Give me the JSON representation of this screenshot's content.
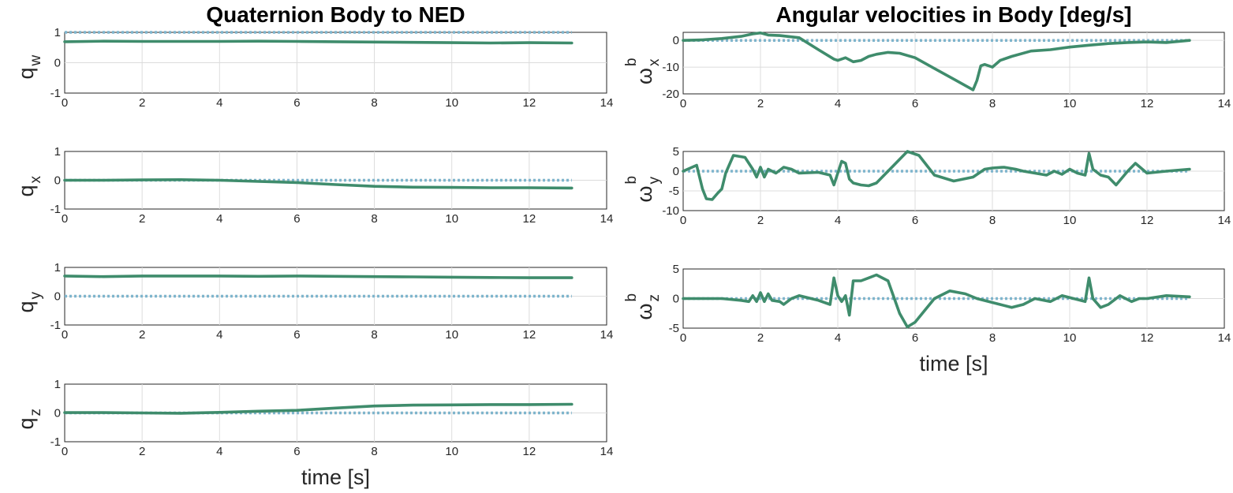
{
  "colors": {
    "measured": "#3f8c6c",
    "reference": "#7fb5cd"
  },
  "chart_data": [
    {
      "type": "line",
      "panel": "qw",
      "title": "Quaternion Body to NED",
      "ylabel": {
        "main": "q",
        "sub": "w",
        "sup": ""
      },
      "xlabel": "",
      "xlim": [
        0,
        14
      ],
      "ylim": [
        -1,
        1
      ],
      "xticks": [
        0,
        2,
        4,
        6,
        8,
        10,
        12,
        14
      ],
      "yticks": [
        -1,
        0,
        1
      ],
      "grid": true,
      "series": [
        {
          "role": "reference",
          "x": [
            0,
            13.1
          ],
          "y": [
            1,
            1
          ]
        },
        {
          "role": "measured",
          "x": [
            0,
            1,
            2,
            3,
            4,
            5,
            6,
            7,
            8,
            9,
            10,
            11,
            12,
            13.1
          ],
          "y": [
            0.69,
            0.71,
            0.7,
            0.7,
            0.7,
            0.71,
            0.7,
            0.69,
            0.68,
            0.67,
            0.66,
            0.65,
            0.66,
            0.65
          ]
        }
      ]
    },
    {
      "type": "line",
      "panel": "qx",
      "ylabel": {
        "main": "q",
        "sub": "x",
        "sup": ""
      },
      "xlabel": "",
      "xlim": [
        0,
        14
      ],
      "ylim": [
        -1,
        1
      ],
      "xticks": [
        0,
        2,
        4,
        6,
        8,
        10,
        12,
        14
      ],
      "yticks": [
        -1,
        0,
        1
      ],
      "grid": true,
      "series": [
        {
          "role": "reference",
          "x": [
            0,
            13.1
          ],
          "y": [
            0,
            0
          ]
        },
        {
          "role": "measured",
          "x": [
            0,
            1,
            2,
            3,
            4,
            5,
            6,
            7,
            8,
            9,
            10,
            11,
            12,
            13.1
          ],
          "y": [
            0.0,
            0.0,
            0.01,
            0.02,
            0.0,
            -0.04,
            -0.08,
            -0.15,
            -0.21,
            -0.24,
            -0.25,
            -0.26,
            -0.26,
            -0.27
          ]
        }
      ]
    },
    {
      "type": "line",
      "panel": "qy",
      "ylabel": {
        "main": "q",
        "sub": "y",
        "sup": ""
      },
      "xlabel": "",
      "xlim": [
        0,
        14
      ],
      "ylim": [
        -1,
        1
      ],
      "xticks": [
        0,
        2,
        4,
        6,
        8,
        10,
        12,
        14
      ],
      "yticks": [
        -1,
        0,
        1
      ],
      "grid": true,
      "series": [
        {
          "role": "reference",
          "x": [
            0,
            13.1
          ],
          "y": [
            0,
            0
          ]
        },
        {
          "role": "measured",
          "x": [
            0,
            1,
            2,
            3,
            4,
            5,
            6,
            7,
            8,
            9,
            10,
            11,
            12,
            13.1
          ],
          "y": [
            0.7,
            0.68,
            0.7,
            0.7,
            0.7,
            0.69,
            0.7,
            0.69,
            0.68,
            0.67,
            0.66,
            0.65,
            0.64,
            0.64
          ]
        }
      ]
    },
    {
      "type": "line",
      "panel": "qz",
      "ylabel": {
        "main": "q",
        "sub": "z",
        "sup": ""
      },
      "xlabel": "time [s]",
      "xlim": [
        0,
        14
      ],
      "ylim": [
        -1,
        1
      ],
      "xticks": [
        0,
        2,
        4,
        6,
        8,
        10,
        12,
        14
      ],
      "yticks": [
        -1,
        0,
        1
      ],
      "grid": true,
      "series": [
        {
          "role": "reference",
          "x": [
            0,
            13.1
          ],
          "y": [
            0,
            0
          ]
        },
        {
          "role": "measured",
          "x": [
            0,
            1,
            2,
            3,
            4,
            5,
            6,
            7,
            8,
            9,
            10,
            11,
            12,
            13.1
          ],
          "y": [
            0.01,
            0.01,
            0.0,
            -0.01,
            0.02,
            0.06,
            0.09,
            0.17,
            0.24,
            0.27,
            0.28,
            0.29,
            0.29,
            0.3
          ]
        }
      ]
    },
    {
      "type": "line",
      "panel": "wx",
      "title": "Angular velocities in Body [deg/s]",
      "ylabel": {
        "main": "ω",
        "sub": "x",
        "sup": "b"
      },
      "xlabel": "",
      "xlim": [
        0,
        14
      ],
      "ylim": [
        -20,
        3
      ],
      "xticks": [
        0,
        2,
        4,
        6,
        8,
        10,
        12,
        14
      ],
      "yticks": [
        -20,
        -10,
        0
      ],
      "grid": true,
      "series": [
        {
          "role": "reference",
          "x": [
            0,
            13.1
          ],
          "y": [
            0,
            0
          ]
        },
        {
          "role": "measured",
          "x": [
            0,
            0.5,
            1.0,
            1.5,
            1.8,
            2.0,
            2.2,
            2.5,
            3.0,
            3.5,
            3.9,
            4.0,
            4.2,
            4.4,
            4.6,
            4.8,
            5.0,
            5.3,
            5.6,
            6.0,
            6.5,
            7.0,
            7.5,
            7.6,
            7.7,
            7.8,
            8.0,
            8.2,
            8.5,
            9.0,
            9.5,
            10.0,
            10.5,
            11.0,
            11.5,
            12.0,
            12.5,
            13.1
          ],
          "y": [
            0,
            0.2,
            0.7,
            1.5,
            2.4,
            2.8,
            2.0,
            1.8,
            1.0,
            -3.5,
            -7.0,
            -7.5,
            -6.5,
            -8.0,
            -7.5,
            -6.0,
            -5.2,
            -4.5,
            -4.8,
            -6.5,
            -10.5,
            -14.5,
            -18.5,
            -15.0,
            -9.5,
            -9.0,
            -10.0,
            -7.5,
            -6.0,
            -4.0,
            -3.5,
            -2.5,
            -1.8,
            -1.2,
            -0.8,
            -0.6,
            -0.8,
            0
          ]
        }
      ]
    },
    {
      "type": "line",
      "panel": "wy",
      "ylabel": {
        "main": "ω",
        "sub": "y",
        "sup": "b"
      },
      "xlabel": "",
      "xlim": [
        0,
        14
      ],
      "ylim": [
        -10,
        5
      ],
      "xticks": [
        0,
        2,
        4,
        6,
        8,
        10,
        12,
        14
      ],
      "yticks": [
        -10,
        -5,
        0,
        5
      ],
      "grid": true,
      "series": [
        {
          "role": "reference",
          "x": [
            0,
            13.1
          ],
          "y": [
            0,
            0
          ]
        },
        {
          "role": "measured",
          "x": [
            0,
            0.35,
            0.5,
            0.6,
            0.75,
            0.9,
            1.0,
            1.1,
            1.3,
            1.6,
            1.8,
            1.9,
            2.0,
            2.1,
            2.2,
            2.4,
            2.6,
            2.8,
            3.0,
            3.5,
            3.8,
            3.9,
            4.1,
            4.2,
            4.3,
            4.4,
            4.6,
            4.8,
            5.0,
            5.5,
            5.8,
            6.1,
            6.5,
            7.0,
            7.5,
            7.8,
            8.0,
            8.3,
            8.6,
            8.8,
            9.1,
            9.4,
            9.6,
            9.8,
            10.0,
            10.2,
            10.4,
            10.5,
            10.6,
            10.8,
            11.0,
            11.2,
            11.5,
            11.7,
            12.0,
            12.5,
            13.1
          ],
          "y": [
            0,
            1.5,
            -4.5,
            -7.0,
            -7.2,
            -5.5,
            -4.5,
            -0.5,
            4.0,
            3.5,
            0.5,
            -1.5,
            1.0,
            -1.5,
            0.5,
            -0.5,
            1.0,
            0.5,
            -0.5,
            -0.3,
            -1.0,
            -3.5,
            2.5,
            2.0,
            -2.0,
            -3.0,
            -3.5,
            -3.7,
            -3.0,
            2.0,
            5.5,
            4.0,
            -1.0,
            -2.5,
            -1.5,
            0.5,
            0.8,
            1.0,
            0.5,
            0.0,
            -0.5,
            -1.0,
            0.0,
            -0.8,
            0.5,
            -0.5,
            -1.0,
            4.5,
            0.5,
            -1.0,
            -1.5,
            -3.5,
            0.0,
            2.0,
            -0.5,
            0.0,
            0.5
          ]
        }
      ]
    },
    {
      "type": "line",
      "panel": "wz",
      "ylabel": {
        "main": "ω",
        "sub": "z",
        "sup": "b"
      },
      "xlabel": "time [s]",
      "xlim": [
        0,
        14
      ],
      "ylim": [
        -5,
        5
      ],
      "xticks": [
        0,
        2,
        4,
        6,
        8,
        10,
        12,
        14
      ],
      "yticks": [
        -5,
        0,
        5
      ],
      "grid": true,
      "series": [
        {
          "role": "reference",
          "x": [
            0,
            13.1
          ],
          "y": [
            0,
            0
          ]
        },
        {
          "role": "measured",
          "x": [
            0,
            0.5,
            1.0,
            1.5,
            1.7,
            1.8,
            1.9,
            2.0,
            2.1,
            2.2,
            2.3,
            2.5,
            2.6,
            2.8,
            3.0,
            3.5,
            3.8,
            3.9,
            4.0,
            4.1,
            4.2,
            4.3,
            4.4,
            4.6,
            4.8,
            5.0,
            5.3,
            5.6,
            5.8,
            6.0,
            6.5,
            6.9,
            7.3,
            7.6,
            7.9,
            8.2,
            8.5,
            8.8,
            9.1,
            9.5,
            9.8,
            10.1,
            10.4,
            10.5,
            10.6,
            10.8,
            11.0,
            11.3,
            11.6,
            11.8,
            12.0,
            12.5,
            13.1
          ],
          "y": [
            0,
            0,
            0,
            -0.3,
            -0.5,
            0.5,
            -0.5,
            1.0,
            -0.5,
            0.8,
            -0.3,
            -0.5,
            -1.0,
            0.0,
            0.5,
            -0.3,
            -1.0,
            3.5,
            0.5,
            -0.5,
            0.5,
            -2.8,
            3.0,
            3.0,
            3.5,
            4.0,
            3.0,
            -2.5,
            -4.8,
            -4.0,
            0.0,
            1.3,
            0.8,
            0.0,
            -0.5,
            -1.0,
            -1.5,
            -1.0,
            0.0,
            -0.5,
            0.5,
            0.0,
            -0.5,
            3.5,
            0.0,
            -1.5,
            -1.0,
            0.5,
            -0.5,
            0.0,
            0.0,
            0.5,
            0.3
          ]
        }
      ]
    }
  ]
}
